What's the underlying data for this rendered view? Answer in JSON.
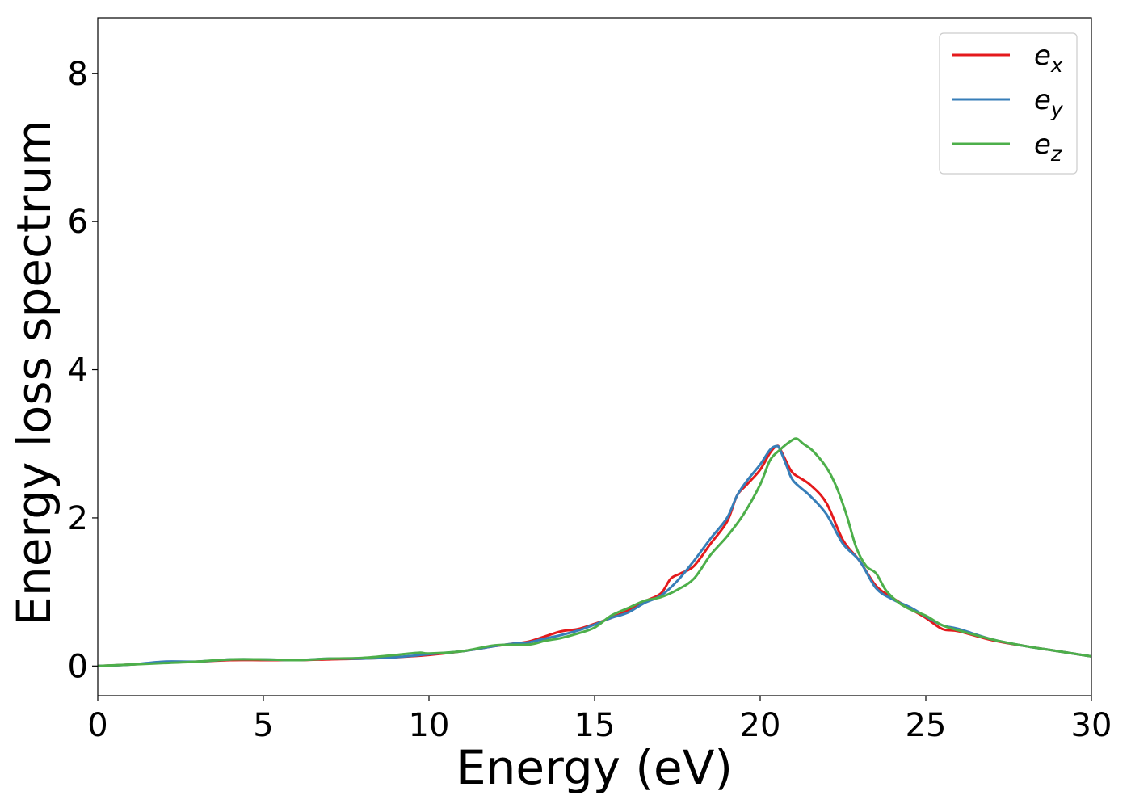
{
  "chart_data": {
    "type": "line",
    "title": "",
    "xlabel": "Energy (eV)",
    "ylabel": "Energy loss spectrum",
    "xlim": [
      0,
      30
    ],
    "ylim": [
      -0.4,
      8.75
    ],
    "xticks": [
      0,
      5,
      10,
      15,
      20,
      25,
      30
    ],
    "yticks": [
      0,
      2,
      4,
      6,
      8
    ],
    "grid": false,
    "legend_position": "top-right",
    "series": [
      {
        "name": "e_x",
        "label_base": "e",
        "label_sub": "x",
        "color": "#e41a1c",
        "x": [
          0,
          1,
          2,
          3,
          4,
          5,
          6,
          7,
          8,
          9,
          10,
          11,
          12,
          12.5,
          13,
          13.5,
          14,
          14.5,
          15,
          15.5,
          16,
          16.5,
          17,
          17.3,
          17.6,
          18,
          18.5,
          19,
          19.3,
          19.6,
          20,
          20.3,
          20.5,
          20.6,
          20.8,
          21,
          21.5,
          22,
          22.5,
          23,
          23.5,
          24,
          24.5,
          25,
          25.5,
          26,
          27,
          28,
          29,
          30
        ],
        "y": [
          0.0,
          0.02,
          0.05,
          0.06,
          0.08,
          0.08,
          0.08,
          0.09,
          0.1,
          0.12,
          0.15,
          0.2,
          0.27,
          0.3,
          0.33,
          0.4,
          0.47,
          0.5,
          0.57,
          0.65,
          0.75,
          0.87,
          0.98,
          1.18,
          1.25,
          1.35,
          1.65,
          1.95,
          2.3,
          2.45,
          2.65,
          2.88,
          2.97,
          2.93,
          2.75,
          2.6,
          2.45,
          2.2,
          1.7,
          1.42,
          1.08,
          0.92,
          0.78,
          0.65,
          0.5,
          0.47,
          0.35,
          0.27,
          0.2,
          0.13
        ]
      },
      {
        "name": "e_y",
        "label_base": "e",
        "label_sub": "y",
        "color": "#377eb8",
        "x": [
          0,
          1,
          2,
          3,
          4,
          5,
          6,
          7,
          8,
          9,
          10,
          11,
          12,
          12.5,
          13,
          13.5,
          14,
          14.5,
          15,
          15.5,
          16,
          16.5,
          17,
          17.5,
          18,
          18.5,
          19,
          19.3,
          19.6,
          20,
          20.3,
          20.5,
          20.6,
          20.8,
          21,
          21.5,
          22,
          22.5,
          23,
          23.5,
          24,
          24.5,
          25,
          25.5,
          26,
          27,
          28,
          29,
          30
        ],
        "y": [
          0.0,
          0.02,
          0.06,
          0.06,
          0.09,
          0.09,
          0.08,
          0.1,
          0.1,
          0.12,
          0.16,
          0.2,
          0.27,
          0.3,
          0.32,
          0.37,
          0.42,
          0.48,
          0.56,
          0.65,
          0.72,
          0.85,
          0.95,
          1.15,
          1.42,
          1.72,
          2.0,
          2.3,
          2.5,
          2.72,
          2.92,
          2.97,
          2.92,
          2.7,
          2.5,
          2.3,
          2.05,
          1.65,
          1.42,
          1.05,
          0.9,
          0.8,
          0.67,
          0.55,
          0.5,
          0.36,
          0.27,
          0.2,
          0.13
        ]
      },
      {
        "name": "e_z",
        "label_base": "e",
        "label_sub": "z",
        "color": "#4daf4a",
        "x": [
          0,
          1,
          2,
          3,
          4,
          5,
          6,
          7,
          8,
          9,
          9.7,
          10,
          11,
          12,
          13,
          13.5,
          14,
          14.5,
          15,
          15.5,
          16,
          16.5,
          17,
          17.5,
          18,
          18.5,
          19,
          19.5,
          20,
          20.3,
          20.6,
          20.9,
          21.1,
          21.3,
          21.6,
          22,
          22.3,
          22.6,
          22.9,
          23.2,
          23.5,
          23.8,
          24.2,
          24.6,
          25,
          25.5,
          26,
          27,
          28,
          29,
          30
        ],
        "y": [
          0.0,
          0.02,
          0.04,
          0.06,
          0.09,
          0.09,
          0.08,
          0.1,
          0.11,
          0.15,
          0.18,
          0.17,
          0.2,
          0.28,
          0.29,
          0.34,
          0.38,
          0.44,
          0.52,
          0.68,
          0.78,
          0.88,
          0.93,
          1.03,
          1.18,
          1.5,
          1.75,
          2.05,
          2.45,
          2.78,
          2.92,
          3.03,
          3.07,
          3.0,
          2.9,
          2.68,
          2.42,
          2.05,
          1.6,
          1.35,
          1.25,
          1.02,
          0.85,
          0.75,
          0.68,
          0.55,
          0.48,
          0.36,
          0.27,
          0.2,
          0.13
        ]
      }
    ]
  }
}
